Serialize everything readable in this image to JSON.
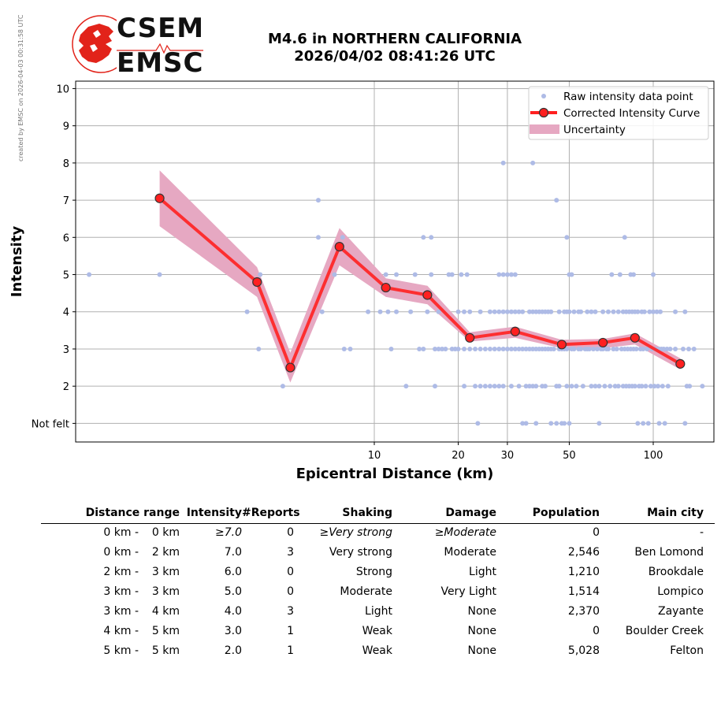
{
  "watermark": "created by EMSC on 2026-04-03 00:31:58 UTC",
  "logo": {
    "line1": "CSEM",
    "line2": "EMSC",
    "brand_color": "#e2231a"
  },
  "title": {
    "line1": "M4.6 in NORTHERN CALIFORNIA",
    "line2": "2026/04/02 08:41:26 UTC"
  },
  "chart_data": {
    "type": "scatter",
    "xlabel": "Epicentral Distance (km)",
    "ylabel": "Intensity",
    "xscale": "log",
    "xlim": [
      0.85,
      165
    ],
    "ylim": [
      0.5,
      10.2
    ],
    "xticks": [
      10,
      20,
      30,
      50,
      100
    ],
    "xtick_labels": [
      "10",
      "20",
      "30",
      "50",
      "100"
    ],
    "yticks": [
      1,
      2,
      3,
      4,
      5,
      6,
      7,
      8,
      9,
      10
    ],
    "ytick_labels": [
      "Not felt",
      "2",
      "3",
      "4",
      "5",
      "6",
      "7",
      "8",
      "9",
      "10"
    ],
    "grid": true,
    "legend_position": "top-right",
    "legend": [
      "Raw intensity data point",
      "Corrected Intensity Curve",
      "Uncertainty"
    ],
    "colors": {
      "raw": "#aebbe6",
      "curve": "#ff2020",
      "marker_edge": "#333333",
      "uncertainty": "#e6a8c2"
    },
    "curve": {
      "x": [
        1.7,
        3.8,
        5.0,
        7.5,
        11,
        15.5,
        22,
        32,
        47,
        66,
        86,
        125
      ],
      "y": [
        7.05,
        4.8,
        2.5,
        5.75,
        4.65,
        4.45,
        3.3,
        3.47,
        3.12,
        3.17,
        3.3,
        2.6
      ],
      "lower": [
        6.3,
        4.4,
        2.1,
        5.25,
        4.4,
        4.2,
        3.2,
        3.3,
        3.02,
        3.02,
        3.12,
        2.45
      ],
      "upper": [
        7.8,
        5.2,
        2.9,
        6.25,
        4.9,
        4.7,
        3.45,
        3.6,
        3.25,
        3.27,
        3.42,
        2.75
      ]
    },
    "raw_points": [
      [
        0.95,
        5
      ],
      [
        1.7,
        5
      ],
      [
        3.5,
        4
      ],
      [
        3.9,
        5
      ],
      [
        3.85,
        3
      ],
      [
        4.7,
        2
      ],
      [
        6.3,
        7
      ],
      [
        6.3,
        6
      ],
      [
        6.5,
        4
      ],
      [
        7.2,
        5
      ],
      [
        7.7,
        6
      ],
      [
        7.8,
        3
      ],
      [
        8.2,
        3
      ],
      [
        9.5,
        4
      ],
      [
        10.5,
        4
      ],
      [
        11,
        5
      ],
      [
        11.2,
        4
      ],
      [
        11.5,
        3
      ],
      [
        12,
        4
      ],
      [
        12,
        5
      ],
      [
        13,
        2
      ],
      [
        13.5,
        4
      ],
      [
        14,
        5
      ],
      [
        14.5,
        3
      ],
      [
        15,
        6
      ],
      [
        15,
        3
      ],
      [
        15.5,
        4
      ],
      [
        16,
        5
      ],
      [
        16,
        6
      ],
      [
        16.5,
        2
      ],
      [
        16.5,
        3
      ],
      [
        17,
        4
      ],
      [
        17,
        3
      ],
      [
        17.5,
        3
      ],
      [
        18,
        3
      ],
      [
        18.5,
        5
      ],
      [
        19,
        5
      ],
      [
        19,
        3
      ],
      [
        19.5,
        3
      ],
      [
        20,
        4
      ],
      [
        20,
        3
      ],
      [
        20.5,
        5
      ],
      [
        21,
        4
      ],
      [
        21,
        2
      ],
      [
        21,
        3
      ],
      [
        21.5,
        5
      ],
      [
        22,
        4
      ],
      [
        22,
        3
      ],
      [
        23,
        3
      ],
      [
        23,
        2
      ],
      [
        23.5,
        1
      ],
      [
        24,
        4
      ],
      [
        24,
        3
      ],
      [
        24,
        2
      ],
      [
        25,
        2
      ],
      [
        25,
        3
      ],
      [
        26,
        3
      ],
      [
        26,
        4
      ],
      [
        26,
        2
      ],
      [
        27,
        3
      ],
      [
        27,
        4
      ],
      [
        27,
        2
      ],
      [
        28,
        3
      ],
      [
        28,
        4
      ],
      [
        28,
        5
      ],
      [
        28,
        2
      ],
      [
        29,
        8
      ],
      [
        29,
        5
      ],
      [
        29,
        4
      ],
      [
        29,
        3
      ],
      [
        29,
        2
      ],
      [
        30,
        5
      ],
      [
        30,
        4
      ],
      [
        30,
        3
      ],
      [
        31,
        5
      ],
      [
        31,
        4
      ],
      [
        31,
        3
      ],
      [
        31,
        2
      ],
      [
        32,
        5
      ],
      [
        32,
        4
      ],
      [
        32,
        3
      ],
      [
        33,
        4
      ],
      [
        33,
        3
      ],
      [
        33,
        2
      ],
      [
        34,
        1
      ],
      [
        34,
        4
      ],
      [
        34,
        3
      ],
      [
        35,
        1
      ],
      [
        35,
        2
      ],
      [
        35,
        3
      ],
      [
        36,
        4
      ],
      [
        36,
        3
      ],
      [
        36,
        2
      ],
      [
        37,
        8
      ],
      [
        37,
        4
      ],
      [
        37,
        3
      ],
      [
        37,
        2
      ],
      [
        38,
        1
      ],
      [
        38,
        4
      ],
      [
        38,
        3
      ],
      [
        38,
        2
      ],
      [
        39,
        4
      ],
      [
        39,
        3
      ],
      [
        40,
        4
      ],
      [
        40,
        3
      ],
      [
        40,
        2
      ],
      [
        41,
        4
      ],
      [
        41,
        3
      ],
      [
        41,
        2
      ],
      [
        42,
        4
      ],
      [
        42,
        3
      ],
      [
        43,
        1
      ],
      [
        43,
        4
      ],
      [
        43,
        3
      ],
      [
        44,
        3
      ],
      [
        45,
        1
      ],
      [
        45,
        2
      ],
      [
        45,
        7
      ],
      [
        46,
        4
      ],
      [
        46,
        3
      ],
      [
        46,
        2
      ],
      [
        47,
        1
      ],
      [
        47,
        3
      ],
      [
        48,
        4
      ],
      [
        48,
        3
      ],
      [
        48,
        1
      ],
      [
        49,
        6
      ],
      [
        49,
        4
      ],
      [
        49,
        3
      ],
      [
        49,
        2
      ],
      [
        50,
        5
      ],
      [
        50,
        4
      ],
      [
        50,
        1
      ],
      [
        51,
        5
      ],
      [
        51,
        3
      ],
      [
        51,
        2
      ],
      [
        52,
        4
      ],
      [
        52,
        3
      ],
      [
        53,
        2
      ],
      [
        54,
        4
      ],
      [
        54,
        3
      ],
      [
        55,
        4
      ],
      [
        55,
        3
      ],
      [
        56,
        2
      ],
      [
        57,
        3
      ],
      [
        58,
        4
      ],
      [
        58,
        3
      ],
      [
        59,
        3
      ],
      [
        60,
        4
      ],
      [
        60,
        2
      ],
      [
        61,
        3
      ],
      [
        62,
        4
      ],
      [
        62,
        2
      ],
      [
        63,
        3
      ],
      [
        64,
        2
      ],
      [
        64,
        1
      ],
      [
        65,
        3
      ],
      [
        66,
        4
      ],
      [
        66,
        3
      ],
      [
        67,
        2
      ],
      [
        68,
        3
      ],
      [
        69,
        4
      ],
      [
        69,
        3
      ],
      [
        70,
        2
      ],
      [
        71,
        5
      ],
      [
        72,
        4
      ],
      [
        72,
        3
      ],
      [
        73,
        2
      ],
      [
        74,
        3
      ],
      [
        75,
        4
      ],
      [
        75,
        2
      ],
      [
        76,
        5
      ],
      [
        77,
        3
      ],
      [
        78,
        4
      ],
      [
        78,
        2
      ],
      [
        79,
        6
      ],
      [
        79,
        3
      ],
      [
        80,
        4
      ],
      [
        80,
        2
      ],
      [
        81,
        3
      ],
      [
        82,
        4
      ],
      [
        82,
        2
      ],
      [
        83,
        5
      ],
      [
        83,
        3
      ],
      [
        84,
        4
      ],
      [
        84,
        2
      ],
      [
        85,
        5
      ],
      [
        85,
        3
      ],
      [
        86,
        4
      ],
      [
        86,
        2
      ],
      [
        87,
        3
      ],
      [
        88,
        1
      ],
      [
        88,
        4
      ],
      [
        89,
        2
      ],
      [
        90,
        3
      ],
      [
        91,
        4
      ],
      [
        91,
        2
      ],
      [
        92,
        1
      ],
      [
        92,
        3
      ],
      [
        93,
        4
      ],
      [
        94,
        2
      ],
      [
        95,
        3
      ],
      [
        96,
        1
      ],
      [
        97,
        4
      ],
      [
        98,
        2
      ],
      [
        99,
        3
      ],
      [
        100,
        5
      ],
      [
        100,
        4
      ],
      [
        101,
        2
      ],
      [
        102,
        3
      ],
      [
        103,
        4
      ],
      [
        104,
        2
      ],
      [
        105,
        1
      ],
      [
        105,
        3
      ],
      [
        106,
        4
      ],
      [
        107,
        3
      ],
      [
        108,
        2
      ],
      [
        109,
        3
      ],
      [
        110,
        1
      ],
      [
        112,
        3
      ],
      [
        113,
        2
      ],
      [
        115,
        3
      ],
      [
        120,
        4
      ],
      [
        120,
        3
      ],
      [
        128,
        3
      ],
      [
        130,
        4
      ],
      [
        130,
        1
      ],
      [
        132,
        2
      ],
      [
        134,
        3
      ],
      [
        135,
        2
      ],
      [
        140,
        3
      ],
      [
        150,
        2
      ]
    ]
  },
  "table": {
    "headers": [
      "Distance range",
      "Intensity",
      "#Reports",
      "Shaking",
      "Damage",
      "Population",
      "Main city"
    ],
    "rows": [
      {
        "dfrom": "0 km -",
        "dto": "0 km",
        "intensity": "≥7.0",
        "reports": "0",
        "shaking": "≥Very strong",
        "damage": "≥Moderate",
        "population": "0",
        "city": "-"
      },
      {
        "dfrom": "0 km -",
        "dto": "2 km",
        "intensity": "7.0",
        "reports": "3",
        "shaking": "Very strong",
        "damage": "Moderate",
        "population": "2,546",
        "city": "Ben Lomond"
      },
      {
        "dfrom": "2 km -",
        "dto": "3 km",
        "intensity": "6.0",
        "reports": "0",
        "shaking": "Strong",
        "damage": "Light",
        "population": "1,210",
        "city": "Brookdale"
      },
      {
        "dfrom": "3 km -",
        "dto": "3 km",
        "intensity": "5.0",
        "reports": "0",
        "shaking": "Moderate",
        "damage": "Very Light",
        "population": "1,514",
        "city": "Lompico"
      },
      {
        "dfrom": "3 km -",
        "dto": "4 km",
        "intensity": "4.0",
        "reports": "3",
        "shaking": "Light",
        "damage": "None",
        "population": "2,370",
        "city": "Zayante"
      },
      {
        "dfrom": "4 km -",
        "dto": "5 km",
        "intensity": "3.0",
        "reports": "1",
        "shaking": "Weak",
        "damage": "None",
        "population": "0",
        "city": "Boulder Creek"
      },
      {
        "dfrom": "5 km -",
        "dto": "5 km",
        "intensity": "2.0",
        "reports": "1",
        "shaking": "Weak",
        "damage": "None",
        "population": "5,028",
        "city": "Felton"
      }
    ]
  }
}
